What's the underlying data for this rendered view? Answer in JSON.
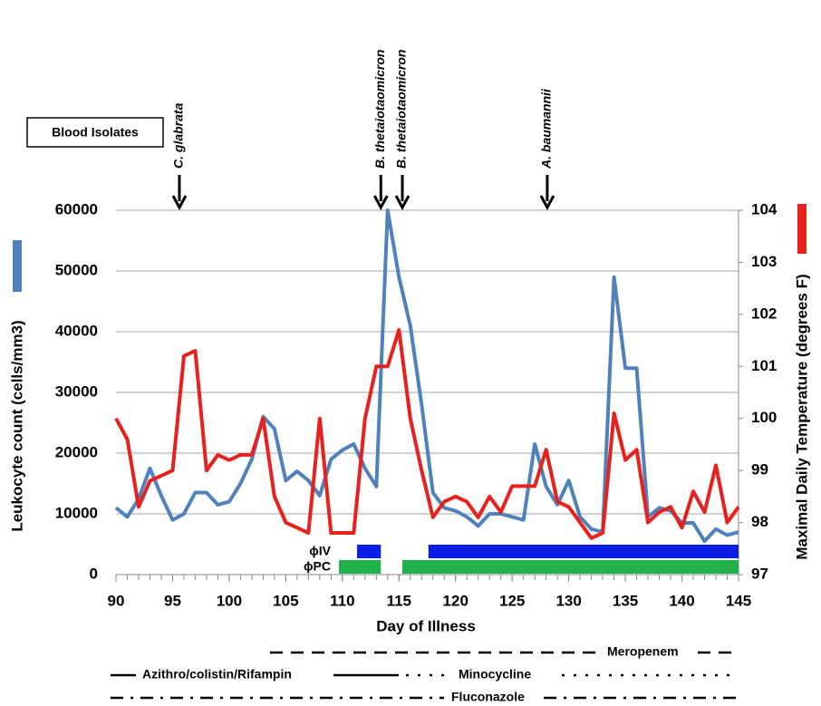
{
  "chart_data": {
    "type": "line",
    "box_label": "Blood Isolates",
    "x_label": "Day of Illness",
    "y_label": "Leukocyte count (cells/mm3)",
    "y2_label": "Maximal Daily Temperature (degrees F)",
    "x": [
      90,
      91,
      92,
      93,
      94,
      95,
      96,
      97,
      98,
      99,
      100,
      101,
      102,
      103,
      104,
      105,
      106,
      107,
      108,
      109,
      110,
      111,
      112,
      113,
      114,
      115,
      116,
      117,
      118,
      119,
      120,
      121,
      122,
      123,
      124,
      125,
      126,
      127,
      128,
      129,
      130,
      131,
      132,
      133,
      134,
      135,
      136,
      137,
      138,
      139,
      140,
      141,
      142,
      143,
      144,
      145
    ],
    "series": [
      {
        "color": "#4f81bd",
        "axis": "y",
        "values": [
          11000,
          9500,
          12500,
          17500,
          13000,
          9000,
          10000,
          13500,
          13500,
          11500,
          12000,
          15000,
          19000,
          26000,
          24000,
          15500,
          17000,
          15500,
          13000,
          19000,
          20500,
          21500,
          17500,
          14500,
          60000,
          49000,
          41000,
          28000,
          13500,
          11000,
          10500,
          9500,
          8000,
          10000,
          10000,
          9500,
          9000,
          21500,
          14500,
          11500,
          15500,
          9500,
          7500,
          7000,
          49000,
          34000,
          34000,
          9500,
          11000,
          10500,
          8500,
          8500,
          5500,
          7500,
          6500,
          7000
        ]
      },
      {
        "color": "#e8211d",
        "axis": "y2",
        "values": [
          100,
          99.6,
          98.3,
          98.8,
          98.9,
          99.0,
          101.2,
          101.3,
          99.0,
          99.3,
          99.2,
          99.3,
          99.3,
          100,
          98.5,
          98.0,
          97.9,
          97.8,
          100,
          97.8,
          97.8,
          97.8,
          100,
          101,
          101,
          101.7,
          100,
          99,
          98.1,
          98.4,
          98.5,
          98.4,
          98.1,
          98.5,
          98.2,
          98.7,
          98.7,
          98.7,
          99.4,
          98.4,
          98.3,
          98,
          97.7,
          97.8,
          100.1,
          99.2,
          99.4,
          98,
          98.2,
          98.3,
          97.9,
          98.6,
          98.2,
          99.1,
          98,
          98.3
        ]
      }
    ],
    "xlim": [
      90,
      145
    ],
    "xticks": [
      90,
      95,
      100,
      105,
      110,
      115,
      120,
      125,
      130,
      135,
      140,
      145
    ],
    "ylim": [
      0,
      60000
    ],
    "yticks": [
      0,
      10000,
      20000,
      30000,
      40000,
      50000,
      60000
    ],
    "y2lim": [
      97,
      104
    ],
    "y2ticks": [
      97,
      98,
      99,
      100,
      101,
      102,
      103,
      104
    ],
    "grid": true,
    "annotations": [
      {
        "x": 95.6,
        "text": "C. glabrata"
      },
      {
        "x": 113.4,
        "text": "B. thetaiotaomicron"
      },
      {
        "x": 115.3,
        "text": "B. thetaiotaomicron"
      },
      {
        "x": 128.1,
        "text": "A. baumannii"
      }
    ],
    "therapy_bars": [
      {
        "label": "ϕIV",
        "color": "#0a1ee6",
        "segments": [
          [
            111.3,
            113.4
          ],
          [
            117.6,
            145
          ]
        ]
      },
      {
        "label": "ϕPC",
        "color": "#22b04a",
        "segments": [
          [
            109.7,
            113.4
          ],
          [
            115.3,
            145
          ]
        ]
      }
    ],
    "regimens": [
      "Meropenem",
      "Azithro/colistin/Rifampin",
      "Minocycline",
      "Fluconazole"
    ]
  }
}
